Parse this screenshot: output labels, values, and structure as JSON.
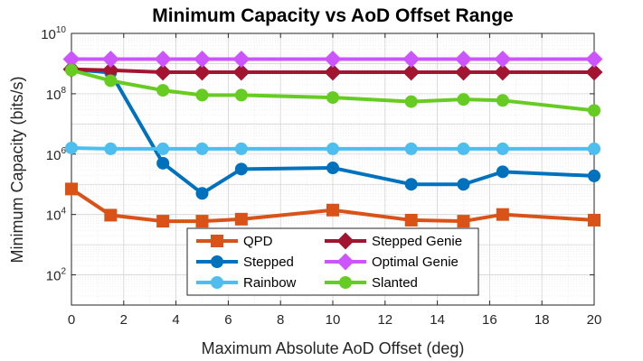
{
  "chart_data": {
    "type": "line",
    "title": "Minimum Capacity vs AoD Offset Range",
    "xlabel": "Maximum Absolute AoD Offset (deg)",
    "ylabel": "Minimum Capacity (bits/s)",
    "xlim": [
      0,
      20
    ],
    "ylim": [
      10,
      10000000000
    ],
    "yscale": "log",
    "grid": true,
    "minor_grid": true,
    "x_ticks": [
      0,
      2,
      4,
      6,
      8,
      10,
      12,
      14,
      16,
      18,
      20
    ],
    "y_ticks": [
      {
        "base": "10",
        "exp": "2",
        "value": 100
      },
      {
        "base": "10",
        "exp": "4",
        "value": 10000
      },
      {
        "base": "10",
        "exp": "6",
        "value": 1000000
      },
      {
        "base": "10",
        "exp": "8",
        "value": 100000000
      },
      {
        "base": "10",
        "exp": "10",
        "value": 10000000000
      }
    ],
    "legend_position": "bottom-center",
    "series": [
      {
        "name": "QPD",
        "color": "#d95319",
        "marker": "square",
        "x": [
          0,
          1.5,
          3.5,
          5,
          6.5,
          10,
          13,
          15,
          16.5,
          20
        ],
        "y": [
          70000,
          9500,
          6000,
          6000,
          7000,
          14000,
          6500,
          6000,
          10000,
          6500
        ]
      },
      {
        "name": "Stepped",
        "color": "#0072bd",
        "marker": "circle",
        "x": [
          0,
          1.5,
          3.5,
          5,
          6.5,
          10,
          13,
          15,
          16.5,
          20
        ],
        "y": [
          650000000,
          500000000,
          500000,
          50000,
          320000,
          350000,
          100000,
          100000,
          260000,
          190000
        ]
      },
      {
        "name": "Rainbow",
        "color": "#4dbeee",
        "marker": "circle",
        "x": [
          0,
          1.5,
          3.5,
          5,
          6.5,
          10,
          13,
          15,
          16.5,
          20
        ],
        "y": [
          1600000,
          1500000,
          1500000,
          1500000,
          1500000,
          1500000,
          1500000,
          1500000,
          1500000,
          1500000
        ]
      },
      {
        "name": "Stepped Genie",
        "color": "#a2142f",
        "marker": "diamond",
        "x": [
          0,
          1.5,
          3.5,
          5,
          6.5,
          10,
          13,
          15,
          16.5,
          20
        ],
        "y": [
          650000000,
          600000000,
          520000000,
          520000000,
          520000000,
          520000000,
          520000000,
          520000000,
          520000000,
          520000000
        ]
      },
      {
        "name": "Optimal Genie",
        "color": "#cc55ff",
        "marker": "diamond",
        "x": [
          0,
          1.5,
          3.5,
          5,
          6.5,
          10,
          13,
          15,
          16.5,
          20
        ],
        "y": [
          1400000000,
          1400000000,
          1400000000,
          1400000000,
          1400000000,
          1400000000,
          1400000000,
          1400000000,
          1400000000,
          1400000000
        ]
      },
      {
        "name": "Slanted",
        "color": "#66cc22",
        "marker": "circle",
        "x": [
          0,
          1.5,
          3.5,
          5,
          6.5,
          10,
          13,
          15,
          16.5,
          20
        ],
        "y": [
          600000000,
          270000000,
          130000000,
          90000000,
          90000000,
          75000000,
          55000000,
          65000000,
          60000000,
          28000000
        ]
      }
    ],
    "legend_layout": [
      [
        "QPD",
        "Stepped Genie"
      ],
      [
        "Stepped",
        "Optimal Genie"
      ],
      [
        "Rainbow",
        "Slanted"
      ]
    ]
  }
}
